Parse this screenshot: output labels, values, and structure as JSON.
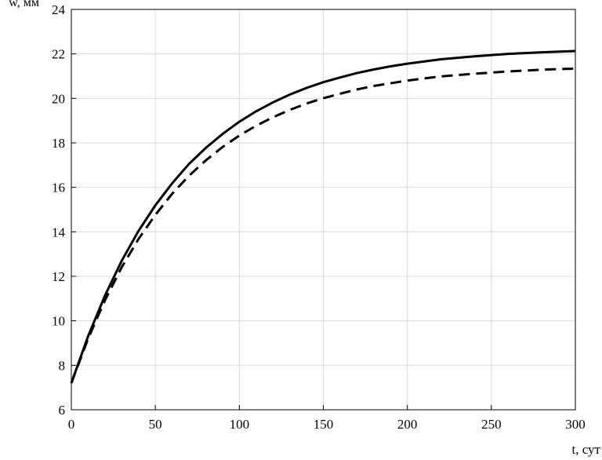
{
  "chart_data": {
    "type": "line",
    "y_label": "w, мм",
    "x_label": "t, сут",
    "x": [
      0,
      10,
      20,
      30,
      40,
      50,
      60,
      70,
      80,
      90,
      100,
      110,
      120,
      130,
      140,
      150,
      160,
      170,
      180,
      190,
      200,
      220,
      240,
      260,
      280,
      300
    ],
    "series": [
      {
        "color": "#000000",
        "style": "solid",
        "values": [
          7.2,
          9.31,
          11.13,
          12.7,
          14.04,
          15.19,
          16.18,
          17.05,
          17.77,
          18.4,
          18.95,
          19.42,
          19.82,
          20.17,
          20.47,
          20.73,
          20.94,
          21.14,
          21.3,
          21.44,
          21.56,
          21.76,
          21.89,
          22.0,
          22.07,
          22.13
        ]
      },
      {
        "color": "#000000",
        "style": "dashed",
        "values": [
          7.2,
          9.2,
          10.92,
          12.41,
          13.68,
          14.76,
          15.71,
          16.52,
          17.21,
          17.81,
          18.33,
          18.77,
          19.15,
          19.48,
          19.77,
          20.01,
          20.21,
          20.4,
          20.56,
          20.68,
          20.8,
          20.99,
          21.11,
          21.21,
          21.29,
          21.34
        ]
      }
    ],
    "xlim": [
      0,
      300
    ],
    "xticks": [
      0,
      50,
      100,
      150,
      200,
      250,
      300
    ],
    "ylim": [
      6,
      24
    ],
    "yticks": [
      6,
      8,
      10,
      12,
      14,
      16,
      18,
      20,
      22,
      24
    ],
    "grid": true
  }
}
